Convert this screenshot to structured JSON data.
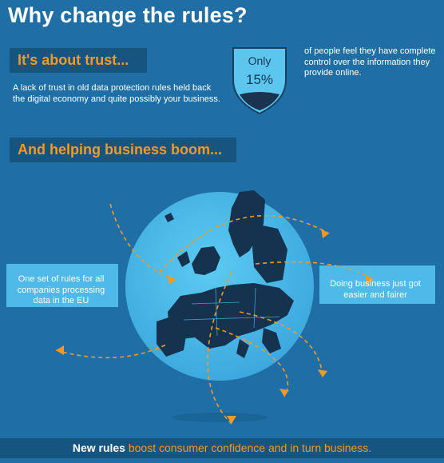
{
  "title": "Why change the rules?",
  "trust": {
    "heading": "It's about trust...",
    "text": "A lack of trust in old data protection rules held back the digital economy and quite possibly your business."
  },
  "stat": {
    "label": "Only",
    "value": "15%",
    "text": "of people feel they have complete control over the information they provide online."
  },
  "boom": {
    "heading": "And helping business boom..."
  },
  "map": {
    "left_caption": "One set of rules for all companies processing data in the EU",
    "right_caption": "Doing business just got easier and fairer"
  },
  "footer": {
    "bold": "New rules",
    "rest": " boost consumer confidence and in turn business."
  },
  "colors": {
    "background": "#1f6fa6",
    "accent": "#f29a26",
    "dark_box": "#16557f",
    "globe": "#4fb9ea",
    "land": "#15324e"
  }
}
